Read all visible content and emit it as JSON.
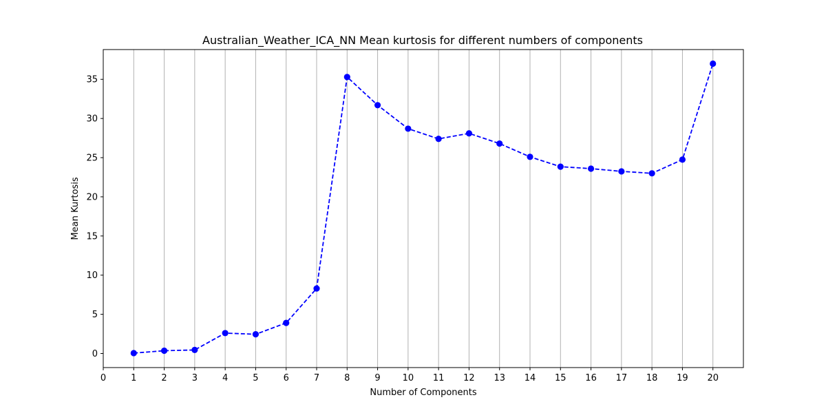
{
  "chart_data": {
    "type": "line",
    "title": "Australian_Weather_ICA_NN Mean kurtosis for different numbers of components",
    "xlabel": "Number of Components",
    "ylabel": "Mean Kurtosis",
    "x": [
      1,
      2,
      3,
      4,
      5,
      6,
      7,
      8,
      9,
      10,
      11,
      12,
      13,
      14,
      15,
      16,
      17,
      18,
      19,
      20
    ],
    "series": [
      {
        "values": [
          0.05,
          0.35,
          0.45,
          2.6,
          2.45,
          3.9,
          8.3,
          35.3,
          31.7,
          28.7,
          27.4,
          28.1,
          26.8,
          25.1,
          23.85,
          23.6,
          23.25,
          23.0,
          24.75,
          37.0
        ],
        "color": "#0000ff",
        "linestyle": "dashed",
        "marker": "circle"
      }
    ],
    "xlim": [
      0,
      21
    ],
    "ylim": [
      -1.8,
      38.8
    ],
    "xticks": [
      "0",
      "1",
      "2",
      "3",
      "4",
      "5",
      "6",
      "7",
      "8",
      "9",
      "10",
      "11",
      "12",
      "13",
      "14",
      "15",
      "16",
      "17",
      "18",
      "19",
      "20"
    ],
    "yticks": [
      "0",
      "5",
      "10",
      "15",
      "20",
      "25",
      "30",
      "35"
    ],
    "grid": "vertical"
  }
}
